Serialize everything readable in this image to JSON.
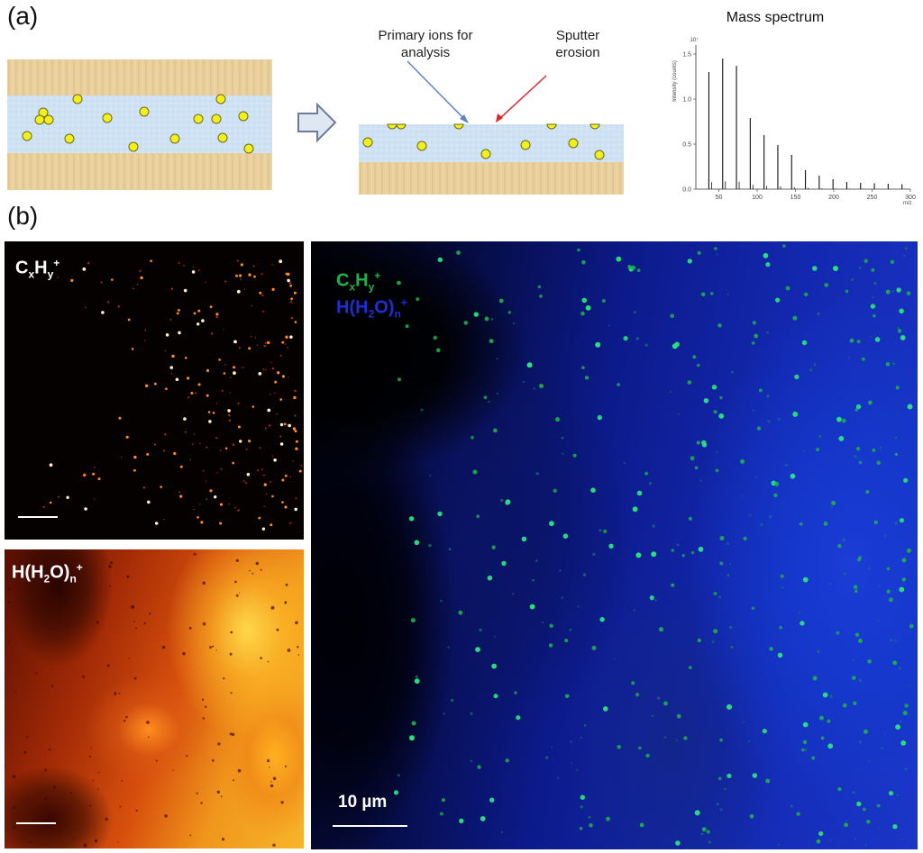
{
  "panel_a": {
    "label": "(a)",
    "primary_ions_text": "Primary ions for analysis",
    "sputter_text": "Sputter erosion",
    "mass_spectrum": {
      "title": "Mass spectrum",
      "ylabel": "Intensity (counts)",
      "xlabel": "m/z",
      "y_exponent": "10⁷",
      "x_ticks": [
        "50",
        "100",
        "150",
        "200",
        "250",
        "300"
      ],
      "y_ticks": [
        "0.0",
        "0.5",
        "1.0",
        "1.5"
      ],
      "xlim": [
        20,
        300
      ],
      "ylim": [
        0,
        1.6
      ],
      "peaks_mz": [
        37,
        55,
        73,
        91,
        109,
        127,
        145,
        163,
        181,
        199,
        217,
        235,
        253,
        271,
        289
      ],
      "peaks_intensity": [
        1.3,
        1.45,
        1.37,
        0.79,
        0.6,
        0.49,
        0.38,
        0.21,
        0.15,
        0.11,
        0.08,
        0.07,
        0.065,
        0.06,
        0.055
      ],
      "colors": {
        "axis": "#333333",
        "peak": "#111111"
      }
    },
    "colors": {
      "wood": "#e8cf9c",
      "ice": "#cfe2f4",
      "particle": "#f3ef1c",
      "particle_edge": "#6b6a1a",
      "primary_arrow": "#5b84c4",
      "sputter_arrow": "#e0242a",
      "arrow_fill": "#dfe7f2",
      "arrow_edge": "#6a7c9a"
    }
  },
  "panel_b": {
    "label": "(b)",
    "top_left": {
      "formula_parts": [
        "C",
        "x",
        "H",
        "y",
        "+"
      ]
    },
    "bottom_left": {
      "formula_parts": [
        "H(H",
        "2",
        "O)",
        "n",
        "+"
      ]
    },
    "right": {
      "formula1_parts": [
        "C",
        "x",
        "H",
        "y",
        "+"
      ],
      "formula2_parts": [
        "H(H",
        "2",
        "O)",
        "n",
        "+"
      ],
      "scale_text": "10 µm",
      "colors": {
        "f1": "#1fb14a",
        "f2": "#1d2ed8"
      }
    }
  }
}
